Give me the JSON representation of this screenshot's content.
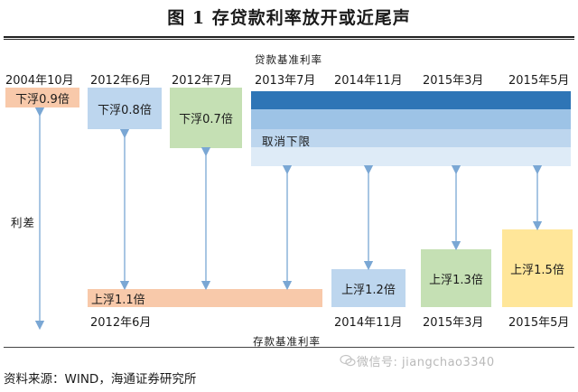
{
  "title": "图 1    存贷款利率放开或近尾声",
  "top_axis_label": "贷款基准利率",
  "bottom_axis_label": "存款基准利率",
  "side_label": "利差",
  "top_dates": [
    "2004年10月",
    "2012年6月",
    "2012年7月",
    "2013年7月",
    "2014年11月",
    "2015年3月",
    "2015年5月"
  ],
  "bottom_dates": [
    "2012年6月",
    "2014年11月",
    "2015年3月",
    "2015年5月"
  ],
  "boxes": {
    "down_09": "下浮0.9倍",
    "down_08": "下浮0.8倍",
    "down_07": "下浮0.7倍",
    "cancel_floor": "取消下限",
    "up_11": "上浮1.1倍",
    "up_12": "上浮1.2倍",
    "up_13": "上浮1.3倍",
    "up_15": "上浮1.5倍"
  },
  "colors": {
    "peach": "#f8c9aa",
    "light_blue": "#bdd6ee",
    "green": "#c5e0b4",
    "dark_blue": "#2e75b6",
    "mid_blue": "#9dc3e6",
    "pale_blue": "#deebf7",
    "yellow": "#ffe699",
    "arrow": "#7aa7d4"
  },
  "source": "资料来源：WIND，海通证券研究所",
  "watermark": "微信号: jiangchao3340"
}
